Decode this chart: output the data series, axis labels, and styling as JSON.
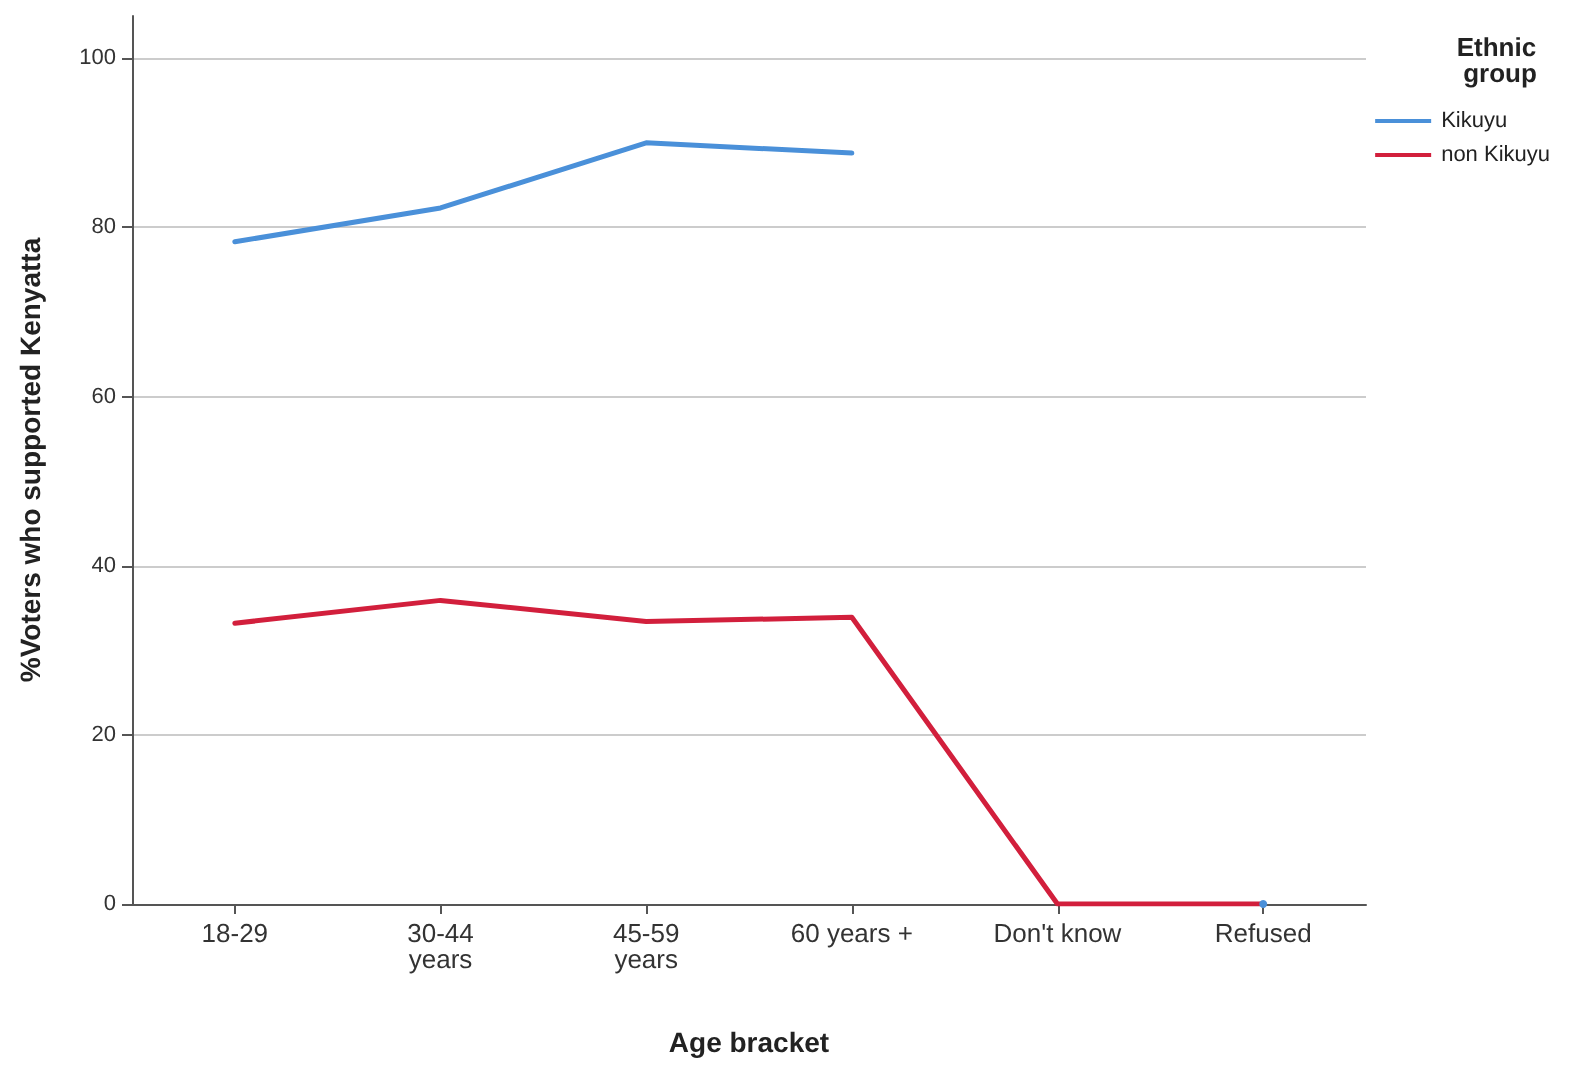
{
  "chart_data": {
    "type": "line",
    "xlabel": "Age bracket",
    "ylabel": "%Voters who supported Kenyatta",
    "legend_title": "Ethnic group",
    "categories": [
      "18-29",
      "30-44 years",
      "45-59 years",
      "60 years +",
      "Don't know",
      "Refused"
    ],
    "series": [
      {
        "name": "Kikuyu",
        "color": "#4a90d9",
        "values": [
          78.3,
          82.3,
          90,
          88.8,
          null,
          0
        ]
      },
      {
        "name": "non Kikuyu",
        "color": "#d21f3c",
        "values": [
          33.2,
          35.9,
          33.4,
          33.9,
          0,
          0
        ]
      }
    ],
    "ylim": [
      0,
      105
    ],
    "yticks": [
      0,
      20,
      40,
      60,
      80,
      100
    ],
    "grid": "y",
    "legend": "right",
    "marker": "none",
    "line_style": "solid"
  }
}
